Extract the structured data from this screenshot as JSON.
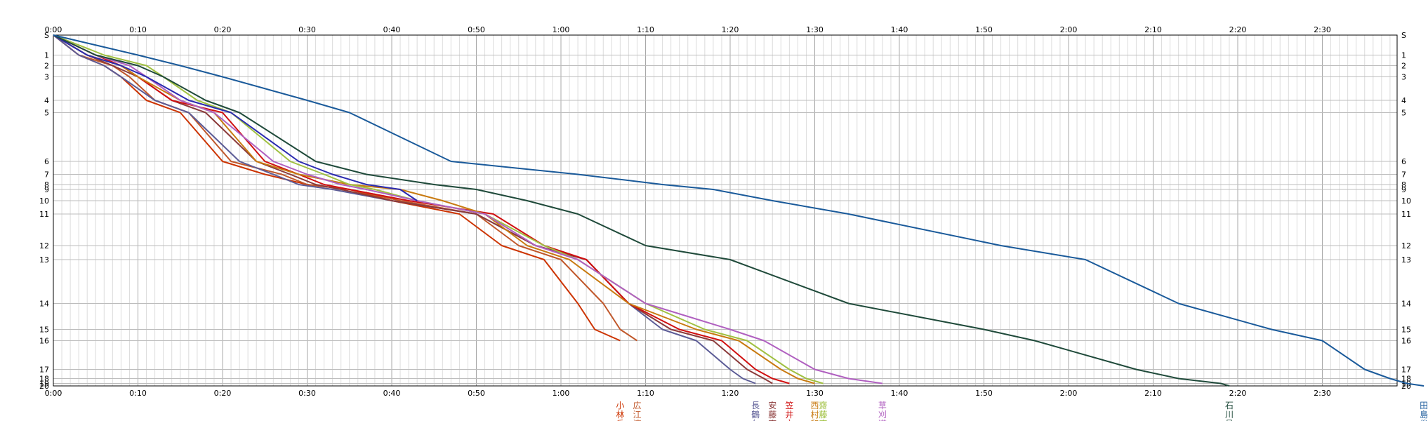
{
  "chart_data": {
    "type": "line",
    "title": "",
    "xlabel": "",
    "ylabel": "",
    "x_unit": "minutes",
    "xlim": [
      0,
      160
    ],
    "x_tick_labels": [
      "0:00",
      "0:10",
      "0:20",
      "0:30",
      "0:40",
      "0:50",
      "1:00",
      "1:10",
      "1:20",
      "1:30",
      "1:40",
      "1:50",
      "2:00",
      "2:10",
      "2:20",
      "2:30"
    ],
    "y_tick_labels": [
      "S",
      "1",
      "2",
      "3",
      "4",
      "5",
      "6",
      "7",
      "8",
      "9",
      "10",
      "11",
      "12",
      "13",
      "14",
      "15",
      "16",
      "17",
      "18",
      "19",
      "20"
    ],
    "checkpoints_rel": [
      0,
      0.057,
      0.087,
      0.119,
      0.186,
      0.221,
      0.36,
      0.397,
      0.426,
      0.44,
      0.472,
      0.51,
      0.6,
      0.64,
      0.765,
      0.839,
      0.871,
      0.953,
      0.979,
      0.993,
      1.0
    ],
    "series": [
      {
        "name": "小林岳",
        "color": "#cc3300",
        "x": [
          0,
          3,
          6,
          8,
          11,
          15,
          20,
          25,
          30,
          35,
          40,
          48,
          53,
          58,
          62,
          64,
          67
        ]
      },
      {
        "name": "広江淳",
        "color": "#c0572a",
        "x": [
          0,
          3,
          7,
          9,
          12,
          16,
          21,
          27,
          30,
          35,
          41,
          50,
          55,
          60,
          65,
          67,
          69
        ]
      },
      {
        "name": "長鶴久",
        "color": "#5c5c96",
        "x": [
          0,
          3,
          6,
          8,
          12,
          16,
          22,
          26,
          29,
          33,
          40,
          50,
          57,
          63,
          68,
          72,
          76,
          80,
          81.5,
          83
        ]
      },
      {
        "name": "安藤克",
        "color": "#8b3a3a",
        "x": [
          0,
          4,
          7,
          10,
          14,
          18,
          24,
          28,
          31,
          34,
          40,
          50,
          57,
          63,
          68,
          73,
          78,
          82,
          84,
          85
        ]
      },
      {
        "name": "笠井文",
        "color": "#d01010",
        "x": [
          0,
          5,
          8,
          10,
          14,
          20,
          25,
          29,
          32,
          35,
          42,
          52,
          58,
          63,
          68,
          74,
          79,
          83,
          85,
          87
        ]
      },
      {
        "name": "西村和",
        "color": "#c87a10",
        "x": [
          0,
          4,
          8,
          10,
          15,
          19,
          24,
          29,
          35,
          41,
          46,
          51,
          56,
          61,
          68,
          76,
          81,
          86,
          88,
          90
        ]
      },
      {
        "name": "齋藤宏",
        "color": "#a0c040",
        "x": [
          0,
          6,
          11,
          13,
          17,
          21,
          28,
          32,
          35,
          38,
          43,
          51,
          58,
          62,
          70,
          77,
          82,
          87,
          89,
          91
        ]
      },
      {
        "name": "草刈道",
        "color": "#b060c0",
        "x": [
          0,
          5,
          9,
          11,
          15,
          19,
          26,
          30,
          34,
          37,
          43,
          51,
          57,
          62,
          70,
          80,
          84,
          90,
          94,
          98
        ]
      },
      {
        "name": "",
        "color": "#2a2ab0",
        "x": [
          0,
          4,
          8,
          11,
          16,
          21,
          29,
          33,
          37,
          41,
          43
        ]
      },
      {
        "name": "石川昌",
        "color": "#1f4a3a",
        "x": [
          0,
          5,
          10,
          13,
          18,
          22,
          31,
          37,
          45,
          50,
          56,
          62,
          70,
          80,
          94,
          110,
          116,
          128,
          133,
          138,
          139
        ]
      },
      {
        "name": "田島俊",
        "color": "#1a5a9a",
        "x": [
          0,
          10,
          15,
          20,
          30,
          35,
          47,
          62,
          72,
          78,
          85,
          94,
          112,
          122,
          133,
          144,
          150,
          155,
          158,
          160,
          162
        ]
      }
    ]
  }
}
